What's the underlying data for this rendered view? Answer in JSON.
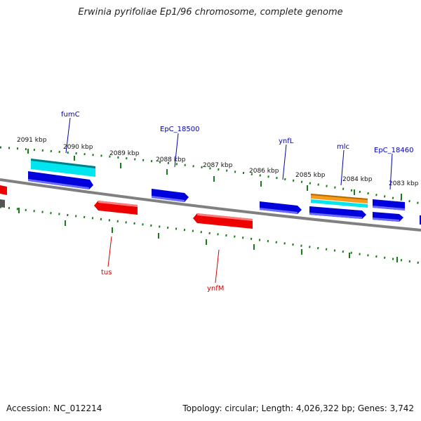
{
  "title": "Erwinia pyrifoliae Ep1/96 chromosome, complete genome",
  "footer": {
    "accession": "Accession: NC_012214",
    "summary": "Topology: circular; Length: 4,026,322 bp; Genes: 3,742"
  },
  "scale_labels": [
    "2091 kbp",
    "2090 kbp",
    "2089 kbp",
    "2088 kbp",
    "2087 kbp",
    "2086 kbp",
    "2085 kbp",
    "2084 kbp",
    "2083 kbp"
  ],
  "gene_labels": {
    "fumC": "fumC",
    "EpC_18500": "EpC_18500",
    "ynfL": "ynfL",
    "mlc": "mlc",
    "EpC_18460": "EpC_18460",
    "tus": "tus",
    "ynfM": "ynfM"
  },
  "colors": {
    "forward_gene": "#0000dd",
    "reverse_gene": "#ee0000",
    "cyan_feature": "#00e5ee",
    "orange_feature": "#f59a1a",
    "backbone": "#808080",
    "tick": "#1a7a1a",
    "label_blue": "#0000b0",
    "label_red": "#d00000"
  }
}
